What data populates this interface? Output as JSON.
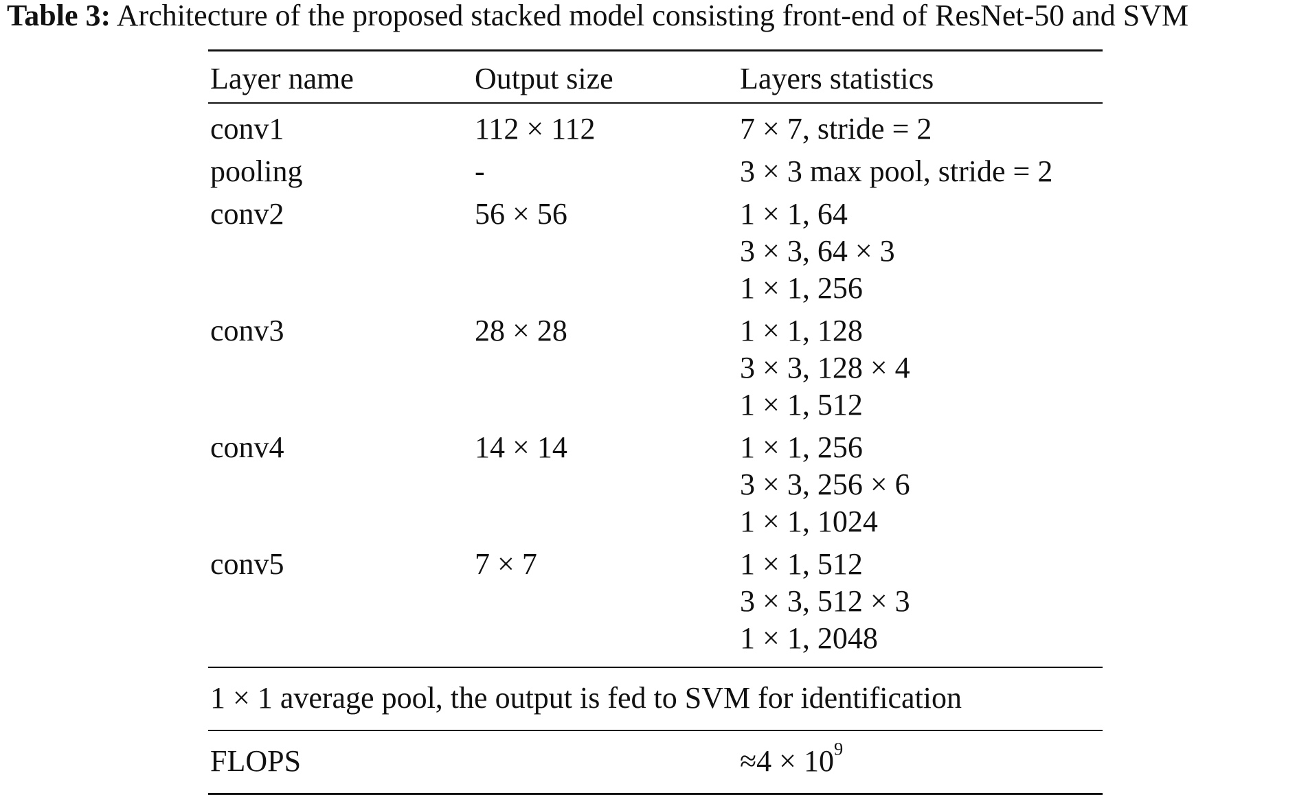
{
  "caption": {
    "label": "Table 3:",
    "text": "Architecture of the proposed stacked model consisting front-end of ResNet-50 and SVM"
  },
  "table": {
    "headers": [
      "Layer name",
      "Output size",
      "Layers statistics"
    ],
    "rows": [
      {
        "name": "conv1",
        "output": "112 × 112",
        "stats": [
          "7 × 7, stride = 2"
        ]
      },
      {
        "name": "pooling",
        "output": "-",
        "stats": [
          "3 × 3 max pool, stride = 2"
        ]
      },
      {
        "name": "conv2",
        "output": "56 × 56",
        "stats": [
          "1 × 1, 64",
          "3 × 3, 64 × 3",
          "1 × 1, 256"
        ]
      },
      {
        "name": "conv3",
        "output": "28 × 28",
        "stats": [
          "1 × 1, 128",
          "3 × 3, 128 × 4",
          "1 × 1, 512"
        ]
      },
      {
        "name": "conv4",
        "output": "14 × 14",
        "stats": [
          "1 × 1, 256",
          "3 × 3, 256 × 6",
          "1 × 1, 1024"
        ]
      },
      {
        "name": "conv5",
        "output": "7 × 7",
        "stats": [
          "1 × 1, 512",
          "3 × 3, 512 × 3",
          "1 × 1, 2048"
        ]
      }
    ],
    "note": "1 × 1 average pool, the output is fed to SVM for identification",
    "flops": {
      "label": "FLOPS",
      "value_base": "≈4 × 10",
      "value_exp": "9"
    }
  }
}
